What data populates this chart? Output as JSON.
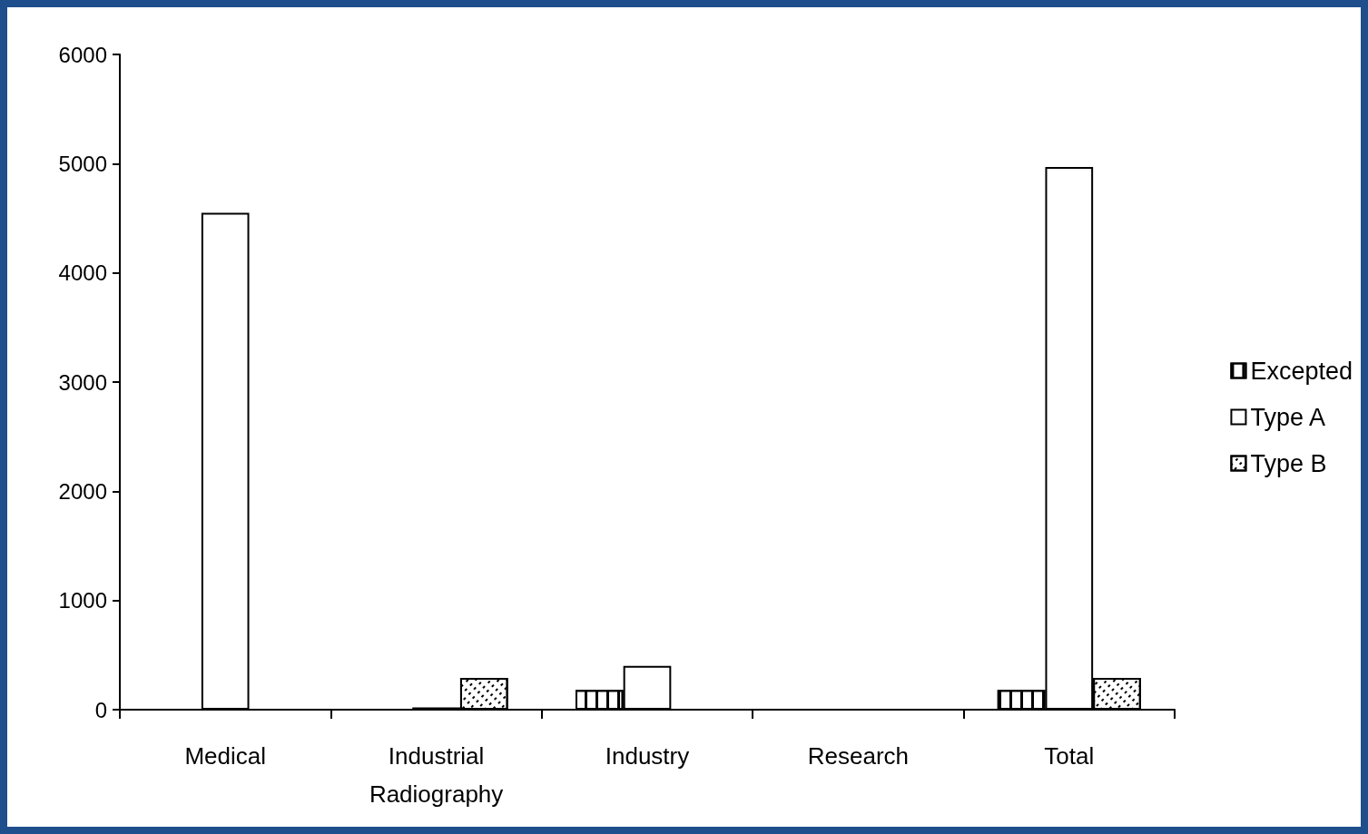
{
  "chart_data": {
    "type": "bar",
    "categories": [
      "Medical",
      "Industrial\nRadiography",
      "Industry",
      "Research",
      "Total"
    ],
    "series": [
      {
        "name": "Excepted",
        "color": "#ffffff",
        "values": [
          null,
          null,
          180,
          null,
          180
        ]
      },
      {
        "name": "Type A",
        "color": "#ffffff",
        "values": [
          4550,
          20,
          400,
          null,
          4970
        ]
      },
      {
        "name": "Type B",
        "color": "#ffffff",
        "values": [
          null,
          290,
          null,
          null,
          290
        ]
      }
    ],
    "ylim": [
      0,
      6000
    ],
    "yticks": [
      0,
      1000,
      2000,
      3000,
      4000,
      5000,
      6000
    ],
    "grid": false,
    "legend": "right"
  }
}
